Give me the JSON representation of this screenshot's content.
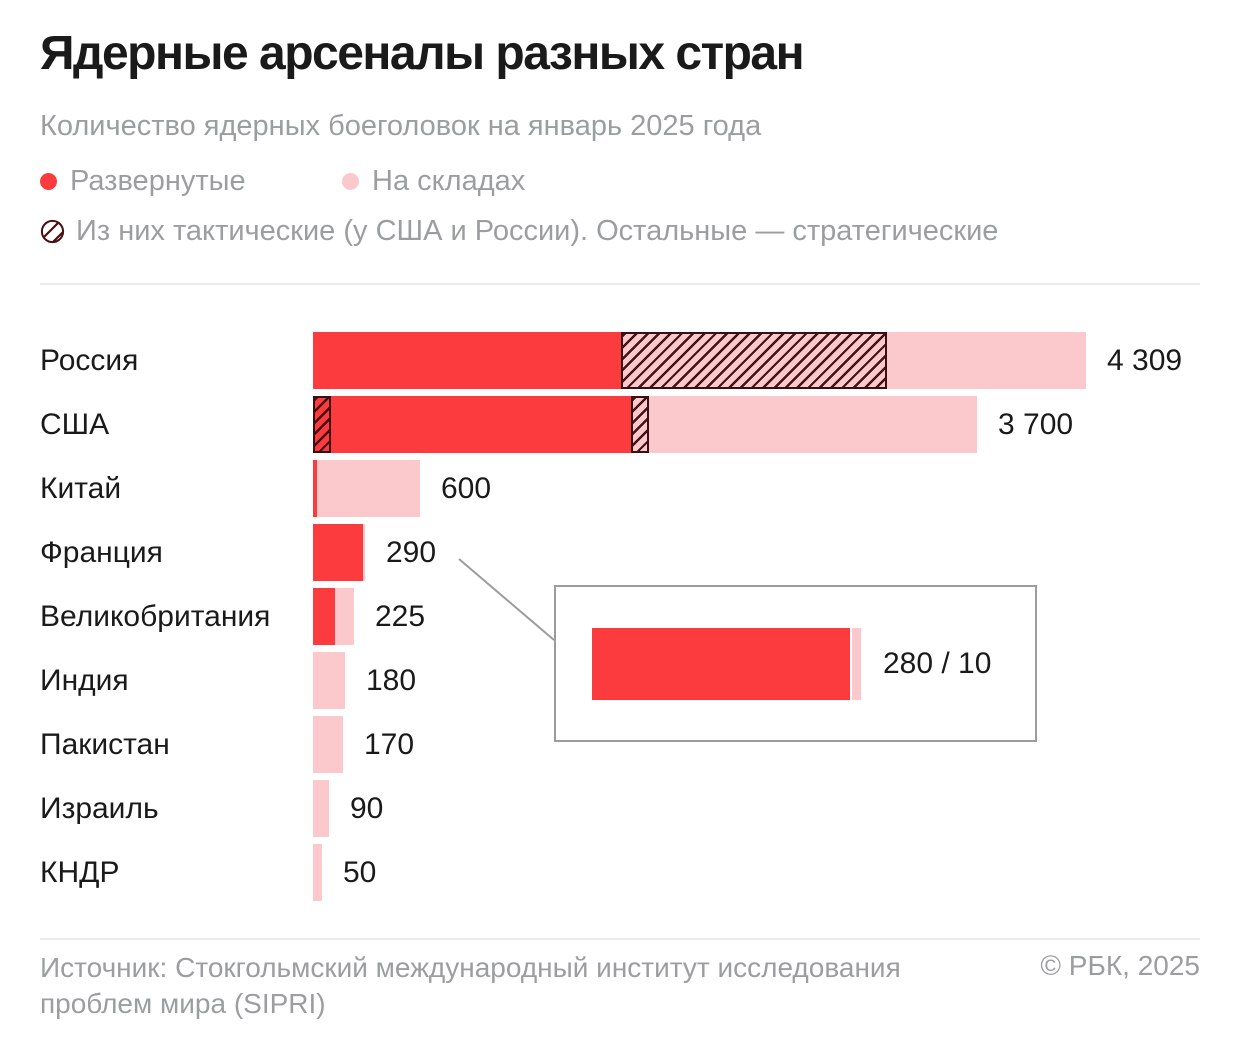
{
  "header": {
    "title": "Ядерные арсеналы разных стран",
    "subtitle": "Количество ядерных боеголовок на январь 2025 года",
    "legend": [
      {
        "label": "Развернутые",
        "type": "deployed"
      },
      {
        "label": "На складах",
        "type": "stored"
      }
    ],
    "legend_note": "Из них тактические (у США и России). Остальные — стратегические"
  },
  "colors": {
    "deployed_red": "#FB3B3E",
    "stored_pink": "#FBC9CB",
    "hatch_line": "#471013",
    "hatch_border": "#381014",
    "text_dark": "#1A1A1A",
    "text_gray": "#9B9EA1",
    "callout_gray": "#9C9C9C",
    "divider": "#EAEAEA"
  },
  "chart_data": {
    "type": "bar",
    "orientation": "horizontal",
    "title": "Ядерные арсеналы разных стран",
    "subtitle": "Количество ядерных боеголовок на январь 2025 года",
    "unit": "ядерные боеголовки",
    "max_value": 4309,
    "legend": [
      "Развернутые",
      "На складах",
      "Из них тактические (у США и России). Остальные — стратегические"
    ],
    "segment_types": {
      "deployed": "solid red",
      "deployed-tactical": "red with dark hatch",
      "stored-tactical": "pink with dark hatch",
      "stored": "solid pink"
    },
    "rows": [
      {
        "country": "Россия",
        "total": 4309,
        "total_label": "4 309",
        "segments": [
          {
            "type": "deployed",
            "value": 1718
          },
          {
            "type": "stored-tactical",
            "value": 1483
          },
          {
            "type": "stored",
            "value": 1108
          }
        ]
      },
      {
        "country": "США",
        "total": 3700,
        "total_label": "3 700",
        "segments": [
          {
            "type": "deployed-tactical",
            "value": 100
          },
          {
            "type": "deployed",
            "value": 1670
          },
          {
            "type": "stored-tactical",
            "value": 100
          },
          {
            "type": "stored",
            "value": 1830
          }
        ]
      },
      {
        "country": "Китай",
        "total": 600,
        "total_label": "600",
        "segments": [
          {
            "type": "deployed",
            "value": 24
          },
          {
            "type": "stored",
            "value": 576
          }
        ]
      },
      {
        "country": "Франция",
        "total": 290,
        "total_label": "290",
        "segments": [
          {
            "type": "deployed",
            "value": 280
          },
          {
            "type": "stored",
            "value": 10
          }
        ]
      },
      {
        "country": "Великобритания",
        "total": 225,
        "total_label": "225",
        "segments": [
          {
            "type": "deployed",
            "value": 120
          },
          {
            "type": "stored",
            "value": 105
          }
        ]
      },
      {
        "country": "Индия",
        "total": 180,
        "total_label": "180",
        "segments": [
          {
            "type": "stored",
            "value": 180
          }
        ]
      },
      {
        "country": "Пакистан",
        "total": 170,
        "total_label": "170",
        "segments": [
          {
            "type": "stored",
            "value": 170
          }
        ]
      },
      {
        "country": "Израиль",
        "total": 90,
        "total_label": "90",
        "segments": [
          {
            "type": "stored",
            "value": 90
          }
        ]
      },
      {
        "country": "КНДР",
        "total": 50,
        "total_label": "50",
        "segments": [
          {
            "type": "stored",
            "value": 50
          }
        ]
      }
    ],
    "inset": {
      "country": "Франция",
      "deployed": 280,
      "stored": 10,
      "label": "280 / 10"
    }
  },
  "footer": {
    "source": "Источник: Стокгольмский международный институт исследования проблем мира (SIPRI)",
    "copyright": "© РБК, 2025"
  }
}
